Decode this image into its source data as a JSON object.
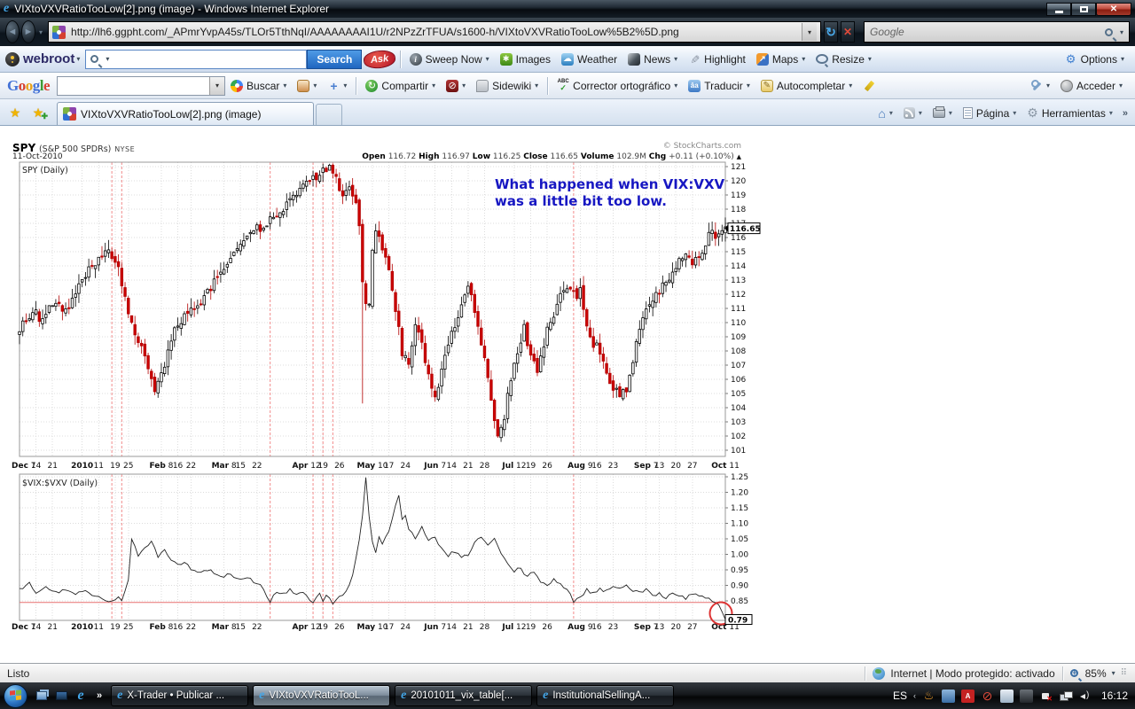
{
  "window": {
    "title": "VIXtoVXVRatioTooLow[2].png (image) - Windows Internet Explorer"
  },
  "icons": {
    "caret": "▾",
    "back": "◄",
    "forward": "►",
    "refresh": "↻",
    "stop": "✕",
    "close": "✕",
    "overflow": "»",
    "star": "★",
    "star_plus": "✚",
    "check": "✓",
    "gear": "⚙",
    "home": "⌂",
    "pencil": "✎",
    "blocked": "⊘",
    "cloud": "☁",
    "up_arrow": "▲",
    "info": "i",
    "north_east": "↗",
    "asterisk": "✱",
    "maps_arrow": "↗",
    "share": "↻",
    "translate": "âa",
    "abc": "ABC",
    "grip": "⠿",
    "tray_chevron": "‹",
    "java": "♨",
    "ati": "A",
    "plus": "+"
  },
  "address_bar": {
    "url": "http://lh6.ggpht.com/_APmrYvpA45s/TLOr5TthNqI/AAAAAAAAI1U/r2NPzZrTFUA/s1600-h/VIXtoVXVRatioTooLow%5B2%5D.png",
    "search_placeholder": "Google"
  },
  "webroot_toolbar": {
    "brand": "webroot",
    "search_button": "Search",
    "ask_badge": "Ask",
    "items": [
      "Sweep Now",
      "Images",
      "Weather",
      "News",
      "Highlight",
      "Maps",
      "Resize"
    ],
    "options": "Options"
  },
  "google_toolbar": {
    "logo_letters": [
      "G",
      "o",
      "o",
      "g",
      "l",
      "e"
    ],
    "buscar": "Buscar",
    "compartir": "Compartir",
    "sidewiki": "Sidewiki",
    "corrector": "Corrector ortográfico",
    "traducir": "Traducir",
    "autocompletar": "Autocompletar",
    "acceder": "Acceder"
  },
  "tab_bar": {
    "active_tab": "VIXtoVXVRatioTooLow[2].png (image)",
    "pagina": "Página",
    "herramientas": "Herramientas"
  },
  "status_bar": {
    "left": "Listo",
    "zone": "Internet | Modo protegido: activado",
    "zoom": "85%"
  },
  "taskbar": {
    "buttons": [
      {
        "label": "X-Trader • Publicar ..."
      },
      {
        "label": "VIXtoVXVRatioTooL..."
      },
      {
        "label": "20101011_vix_table[..."
      },
      {
        "label": "InstitutionalSellingA..."
      }
    ],
    "language": "ES",
    "clock": "16:12"
  },
  "chart": {
    "header": {
      "symbol": "SPY",
      "name": "(S&P 500 SPDRs)",
      "exchange": "NYSE",
      "date": "11-Oct-2010",
      "credit": "© StockCharts.com",
      "quote": [
        {
          "k": "Open",
          "v": "116.72"
        },
        {
          "k": "High",
          "v": "116.97"
        },
        {
          "k": "Low",
          "v": "116.25"
        },
        {
          "k": "Close",
          "v": "116.65"
        },
        {
          "k": "Volume",
          "v": "102.9M"
        },
        {
          "k": "Chg",
          "v": "+0.11 (+0.10%)"
        }
      ]
    },
    "main_panel": {
      "label": "SPY (Daily)",
      "annotation_line1": "What happened when VIX:VXV",
      "annotation_line2": "was a little bit too low.",
      "last_price": "116.65",
      "y_min": 101,
      "y_max": 121
    },
    "lower_panel": {
      "label": "$VIX:$VXV (Daily)",
      "last_value": "0.79",
      "support_level": 0.845,
      "y_ticks": [
        "1.25",
        "1.20",
        "1.15",
        "1.10",
        "1.05",
        "1.00",
        "0.95",
        "0.90",
        "0.85"
      ]
    },
    "days": 215,
    "x_ticks": [
      {
        "m": "Dec",
        "d": "7",
        "day": 0
      },
      {
        "d": "14",
        "day": 5
      },
      {
        "d": "21",
        "day": 10
      },
      {
        "m": "2010",
        "day": 19
      },
      {
        "d": "11",
        "day": 24
      },
      {
        "d": "19",
        "day": 29
      },
      {
        "d": "25",
        "day": 33
      },
      {
        "m": "Feb",
        "d": "8",
        "day": 43
      },
      {
        "d": "16",
        "day": 48
      },
      {
        "d": "22",
        "day": 52
      },
      {
        "m": "Mar",
        "d": "8",
        "day": 62
      },
      {
        "d": "15",
        "day": 67
      },
      {
        "d": "22",
        "day": 72
      },
      {
        "m": "Apr",
        "d": "12",
        "day": 87
      },
      {
        "d": "19",
        "day": 92
      },
      {
        "d": "26",
        "day": 97
      },
      {
        "m": "May",
        "d": "10",
        "day": 107
      },
      {
        "d": "17",
        "day": 112
      },
      {
        "d": "24",
        "day": 117
      },
      {
        "m": "Jun",
        "d": "7",
        "day": 126
      },
      {
        "d": "14",
        "day": 131
      },
      {
        "d": "21",
        "day": 136
      },
      {
        "d": "28",
        "day": 141
      },
      {
        "m": "Jul",
        "d": "12",
        "day": 150
      },
      {
        "d": "19",
        "day": 155
      },
      {
        "d": "26",
        "day": 160
      },
      {
        "m": "Aug",
        "d": "9",
        "day": 170
      },
      {
        "d": "16",
        "day": 175
      },
      {
        "d": "23",
        "day": 180
      },
      {
        "m": "Sep",
        "d": "7",
        "day": 190
      },
      {
        "d": "13",
        "day": 194
      },
      {
        "d": "20",
        "day": 199
      },
      {
        "d": "27",
        "day": 204
      },
      {
        "m": "Oct",
        "d": "11",
        "day": 214
      }
    ],
    "event_days": [
      28,
      31,
      76,
      89,
      92,
      95,
      168
    ],
    "spy_waypoints": [
      [
        0,
        109.7
      ],
      [
        4,
        110.8
      ],
      [
        7,
        110.1
      ],
      [
        10,
        111.3
      ],
      [
        13,
        110.9
      ],
      [
        16,
        111.5
      ],
      [
        19,
        113.0
      ],
      [
        23,
        114.2
      ],
      [
        27,
        114.9
      ],
      [
        30,
        113.6
      ],
      [
        33,
        110.6
      ],
      [
        36,
        108.9
      ],
      [
        39,
        106.8
      ],
      [
        41,
        104.9
      ],
      [
        44,
        106.9
      ],
      [
        47,
        109.6
      ],
      [
        50,
        110.3
      ],
      [
        54,
        111.1
      ],
      [
        58,
        112.4
      ],
      [
        62,
        114.1
      ],
      [
        66,
        115.3
      ],
      [
        70,
        116.2
      ],
      [
        74,
        116.9
      ],
      [
        78,
        117.4
      ],
      [
        82,
        118.6
      ],
      [
        86,
        119.6
      ],
      [
        90,
        120.2
      ],
      [
        94,
        121.1
      ],
      [
        96,
        120.0
      ],
      [
        98,
        118.9
      ],
      [
        100,
        119.4
      ],
      [
        102,
        118.2
      ],
      [
        103,
        117.0
      ],
      [
        104,
        113.2
      ],
      [
        105,
        111.5
      ],
      [
        106,
        111.2
      ],
      [
        107,
        114.8
      ],
      [
        108,
        116.3
      ],
      [
        110,
        115.2
      ],
      [
        112,
        113.8
      ],
      [
        114,
        110.9
      ],
      [
        116,
        108.0
      ],
      [
        118,
        107.4
      ],
      [
        120,
        109.6
      ],
      [
        122,
        108.4
      ],
      [
        124,
        106.2
      ],
      [
        126,
        104.9
      ],
      [
        128,
        106.6
      ],
      [
        130,
        108.4
      ],
      [
        132,
        109.8
      ],
      [
        134,
        111.1
      ],
      [
        136,
        112.4
      ],
      [
        138,
        110.9
      ],
      [
        140,
        108.7
      ],
      [
        142,
        105.9
      ],
      [
        144,
        103.0
      ],
      [
        145,
        101.7
      ],
      [
        147,
        103.4
      ],
      [
        149,
        106.0
      ],
      [
        151,
        108.1
      ],
      [
        153,
        109.6
      ],
      [
        155,
        107.5
      ],
      [
        157,
        106.7
      ],
      [
        159,
        108.6
      ],
      [
        161,
        110.1
      ],
      [
        163,
        111.2
      ],
      [
        165,
        112.3
      ],
      [
        167,
        112.7
      ],
      [
        169,
        111.8
      ],
      [
        170,
        112.4
      ],
      [
        172,
        110.1
      ],
      [
        174,
        108.5
      ],
      [
        176,
        108.1
      ],
      [
        178,
        106.5
      ],
      [
        180,
        105.4
      ],
      [
        182,
        104.8
      ],
      [
        184,
        105.3
      ],
      [
        186,
        107.5
      ],
      [
        188,
        109.6
      ],
      [
        190,
        110.7
      ],
      [
        192,
        111.6
      ],
      [
        194,
        112.2
      ],
      [
        196,
        112.8
      ],
      [
        198,
        113.4
      ],
      [
        200,
        114.4
      ],
      [
        202,
        114.7
      ],
      [
        204,
        113.9
      ],
      [
        206,
        114.6
      ],
      [
        208,
        115.7
      ],
      [
        210,
        116.4
      ],
      [
        212,
        116.1
      ],
      [
        214,
        116.65
      ]
    ],
    "ratio_waypoints": [
      [
        0,
        0.885
      ],
      [
        3,
        0.905
      ],
      [
        5,
        0.875
      ],
      [
        8,
        0.895
      ],
      [
        11,
        0.875
      ],
      [
        14,
        0.89
      ],
      [
        17,
        0.87
      ],
      [
        20,
        0.88
      ],
      [
        23,
        0.862
      ],
      [
        26,
        0.855
      ],
      [
        28,
        0.845
      ],
      [
        30,
        0.86
      ],
      [
        31,
        0.845
      ],
      [
        33,
        0.92
      ],
      [
        34,
        1.05
      ],
      [
        36,
        1.0
      ],
      [
        38,
        1.02
      ],
      [
        40,
        1.045
      ],
      [
        42,
        0.995
      ],
      [
        44,
        1.015
      ],
      [
        46,
        0.985
      ],
      [
        48,
        0.965
      ],
      [
        50,
        0.975
      ],
      [
        52,
        0.955
      ],
      [
        55,
        0.94
      ],
      [
        58,
        0.95
      ],
      [
        61,
        0.925
      ],
      [
        64,
        0.935
      ],
      [
        67,
        0.915
      ],
      [
        70,
        0.92
      ],
      [
        73,
        0.9
      ],
      [
        76,
        0.85
      ],
      [
        78,
        0.88
      ],
      [
        80,
        0.875
      ],
      [
        82,
        0.885
      ],
      [
        84,
        0.87
      ],
      [
        86,
        0.875
      ],
      [
        89,
        0.845
      ],
      [
        91,
        0.87
      ],
      [
        92,
        0.85
      ],
      [
        93,
        0.87
      ],
      [
        95,
        0.845
      ],
      [
        97,
        0.86
      ],
      [
        99,
        0.88
      ],
      [
        101,
        0.93
      ],
      [
        103,
        1.05
      ],
      [
        104,
        1.13
      ],
      [
        105,
        1.25
      ],
      [
        106,
        1.12
      ],
      [
        107,
        1.04
      ],
      [
        108,
        1.005
      ],
      [
        109,
        1.06
      ],
      [
        110,
        1.03
      ],
      [
        112,
        1.075
      ],
      [
        114,
        1.16
      ],
      [
        115,
        1.19
      ],
      [
        116,
        1.11
      ],
      [
        117,
        1.13
      ],
      [
        118,
        1.08
      ],
      [
        120,
        1.05
      ],
      [
        122,
        1.085
      ],
      [
        124,
        1.04
      ],
      [
        126,
        1.06
      ],
      [
        128,
        1.015
      ],
      [
        130,
        0.995
      ],
      [
        132,
        1.01
      ],
      [
        134,
        0.985
      ],
      [
        136,
        1.0
      ],
      [
        138,
        1.04
      ],
      [
        140,
        1.055
      ],
      [
        142,
        1.03
      ],
      [
        144,
        1.05
      ],
      [
        146,
        1.0
      ],
      [
        148,
        0.97
      ],
      [
        150,
        0.945
      ],
      [
        152,
        0.955
      ],
      [
        154,
        0.925
      ],
      [
        156,
        0.945
      ],
      [
        158,
        0.915
      ],
      [
        160,
        0.9
      ],
      [
        162,
        0.92
      ],
      [
        164,
        0.9
      ],
      [
        166,
        0.885
      ],
      [
        168,
        0.85
      ],
      [
        170,
        0.865
      ],
      [
        172,
        0.885
      ],
      [
        174,
        0.875
      ],
      [
        176,
        0.89
      ],
      [
        178,
        0.88
      ],
      [
        180,
        0.9
      ],
      [
        182,
        0.89
      ],
      [
        184,
        0.905
      ],
      [
        186,
        0.885
      ],
      [
        188,
        0.875
      ],
      [
        190,
        0.885
      ],
      [
        192,
        0.865
      ],
      [
        194,
        0.875
      ],
      [
        196,
        0.862
      ],
      [
        198,
        0.878
      ],
      [
        200,
        0.868
      ],
      [
        202,
        0.858
      ],
      [
        204,
        0.875
      ],
      [
        206,
        0.868
      ],
      [
        208,
        0.858
      ],
      [
        210,
        0.852
      ],
      [
        212,
        0.838
      ],
      [
        213,
        0.815
      ],
      [
        214,
        0.79
      ]
    ]
  }
}
